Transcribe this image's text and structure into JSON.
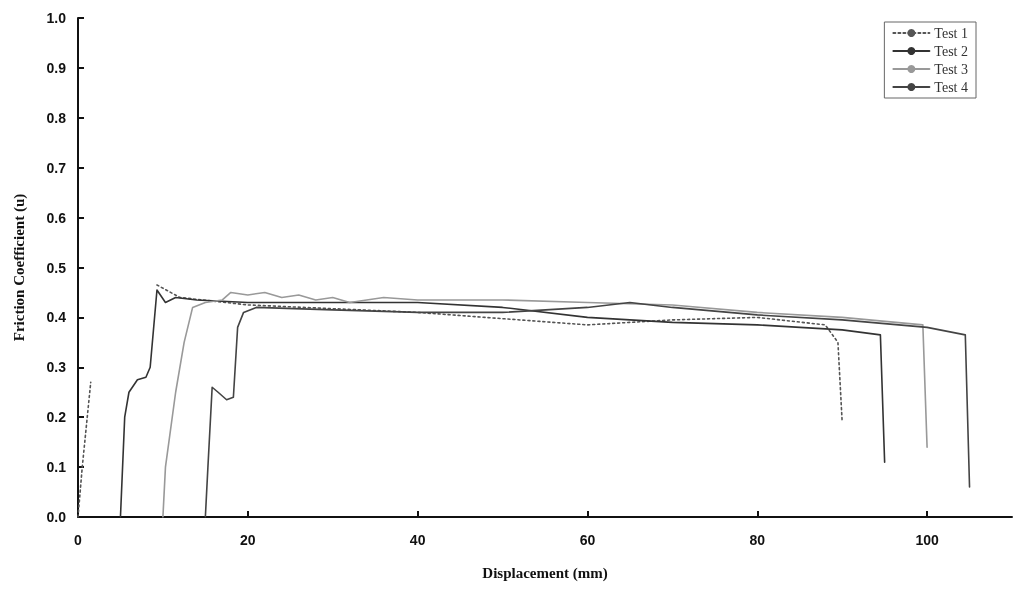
{
  "chart_data": {
    "type": "line",
    "xlabel": "Displacement (mm)",
    "ylabel": "Friction Coefficient (u)",
    "xlim": [
      0,
      110
    ],
    "xticks": [
      0,
      20,
      40,
      60,
      80,
      100
    ],
    "ylim": [
      0,
      1
    ],
    "yticks": [
      {
        "value": 0,
        "label": "0.0"
      },
      0.1,
      0.2,
      0.3,
      0.4,
      0.5,
      0.6,
      0.7,
      0.8,
      0.9,
      {
        "value": 1,
        "label": "1.0"
      }
    ],
    "grid": false,
    "legend": "top right",
    "marker": "none",
    "series": [
      {
        "name": "Test 1",
        "color": "#555555",
        "line_style": "dotted",
        "x": [
          0,
          0.5,
          1.5,
          5,
          9.3,
          12,
          20,
          40,
          60,
          70,
          80,
          88,
          89.5,
          90
        ],
        "values": [
          0,
          0.1,
          0.27,
          null,
          0.465,
          0.44,
          0.425,
          0.41,
          0.385,
          0.395,
          0.4,
          0.385,
          0.35,
          0.19
        ]
      },
      {
        "name": "Test 2",
        "color": "#333333",
        "line_style": "solid",
        "x": [
          5,
          5.5,
          6,
          7,
          8,
          8.5,
          9.3,
          10.3,
          11.5,
          14,
          20,
          30,
          40,
          50,
          60,
          70,
          80,
          90,
          94.5,
          95
        ],
        "values": [
          0,
          0.2,
          0.25,
          0.275,
          0.28,
          0.3,
          0.455,
          0.43,
          0.44,
          0.435,
          0.43,
          0.43,
          0.43,
          0.42,
          0.4,
          0.39,
          0.385,
          0.375,
          0.365,
          0.11
        ]
      },
      {
        "name": "Test 3",
        "color": "#999999",
        "line_style": "solid",
        "x": [
          10,
          10.3,
          11.5,
          12.5,
          13.5,
          15,
          17,
          18,
          20,
          22,
          24,
          26,
          28,
          30,
          32,
          36,
          40,
          50,
          60,
          70,
          80,
          90,
          99.5,
          100
        ],
        "values": [
          0,
          0.1,
          0.25,
          0.35,
          0.42,
          0.43,
          0.435,
          0.45,
          0.445,
          0.45,
          0.44,
          0.445,
          0.435,
          0.44,
          0.43,
          0.44,
          0.435,
          0.435,
          0.43,
          0.425,
          0.41,
          0.4,
          0.385,
          0.14
        ]
      },
      {
        "name": "Test 4",
        "color": "#444444",
        "line_style": "solid",
        "x": [
          15,
          15.3,
          15.8,
          16.5,
          17.5,
          18.3,
          18.8,
          19.5,
          21,
          30,
          40,
          50,
          60,
          65,
          70,
          80,
          90,
          100,
          104.5,
          105
        ],
        "values": [
          0,
          0.1,
          0.26,
          0.25,
          0.235,
          0.24,
          0.38,
          0.41,
          0.42,
          0.415,
          0.41,
          0.41,
          0.42,
          0.43,
          0.42,
          0.405,
          0.395,
          0.38,
          0.365,
          0.06
        ]
      }
    ]
  }
}
